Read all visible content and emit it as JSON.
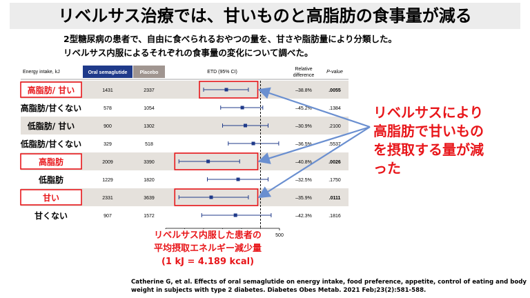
{
  "title": "リベルサス治療では、甘いものと高脂肪の食事量が減る",
  "subtitle_lines": [
    "2型糖尿病の患者で、自由に食べられるおやつの量を、甘さや脂肪量により分類した。",
    "リベルサス内服によるそれぞれの食事量の変化について調べた。"
  ],
  "table_headers": {
    "energy": "Energy intake, kJ",
    "oral": "Oral semaglutide",
    "placebo": "Placebo",
    "etd": "ETD (95% CI)",
    "relative": [
      "Relative",
      "difference"
    ],
    "pvalue": "P-value"
  },
  "colors": {
    "red": "#e8161a",
    "navy": "#1f3a8a",
    "oral_header": "#1f3a8a",
    "placebo_header": "#a09590",
    "shade": "#e5e1dc",
    "arrow": "#6a8fd0"
  },
  "chart_data": {
    "type": "forest",
    "x_ticks": [
      -2500,
      -2000,
      -1500,
      -1000,
      -500,
      0,
      500
    ],
    "xlim": [
      -2500,
      500
    ],
    "rows": [
      {
        "label": "高脂肪/ 甘い",
        "oral": "1431",
        "placebo": "2337",
        "etd": -900,
        "lo": -1500,
        "hi": -320,
        "rel": "–38.8%",
        "p": ".0055",
        "highlight": true,
        "shaded": true,
        "bold_p": true
      },
      {
        "label": "高脂肪/甘くない",
        "oral": "578",
        "placebo": "1054",
        "etd": -480,
        "lo": -1050,
        "hi": 60,
        "rel": "–45.2%",
        "p": ".1384",
        "highlight": false,
        "shaded": false,
        "bold_p": false
      },
      {
        "label": "低脂肪/ 甘い",
        "oral": "900",
        "placebo": "1302",
        "etd": -400,
        "lo": -1000,
        "hi": 200,
        "rel": "–30.9%",
        "p": ".2100",
        "highlight": false,
        "shaded": true,
        "bold_p": false
      },
      {
        "label": "低脂肪/甘くない",
        "oral": "329",
        "placebo": "518",
        "etd": -190,
        "lo": -850,
        "hi": 480,
        "rel": "–36.5%",
        "p": ".5537",
        "highlight": false,
        "shaded": false,
        "bold_p": false
      },
      {
        "label": "高脂肪",
        "oral": "2009",
        "placebo": "3390",
        "etd": -1380,
        "lo": -2150,
        "hi": -550,
        "rel": "–40.8%",
        "p": ".0026",
        "highlight": true,
        "shaded": true,
        "bold_p": true
      },
      {
        "label": "低脂肪",
        "oral": "1229",
        "placebo": "1820",
        "etd": -590,
        "lo": -1400,
        "hi": 200,
        "rel": "–32.5%",
        "p": ".1750",
        "highlight": false,
        "shaded": false,
        "bold_p": false
      },
      {
        "label": "甘い",
        "oral": "2331",
        "placebo": "3639",
        "etd": -1300,
        "lo": -2150,
        "hi": -320,
        "rel": "–35.9%",
        "p": ".0111",
        "highlight": true,
        "shaded": true,
        "bold_p": true
      },
      {
        "label": "甘くない",
        "oral": "907",
        "placebo": "1572",
        "etd": -660,
        "lo": -1550,
        "hi": 280,
        "rel": "–42.3%",
        "p": ".1816",
        "highlight": false,
        "shaded": false,
        "bold_p": false
      }
    ]
  },
  "callout_lines": [
    "リベルサスにより",
    "高脂肪で甘いもの",
    "を摂取する量が減",
    "った"
  ],
  "note_lines": [
    "リベルサス内服した患者の",
    "平均摂取エネルギー減少量",
    "(1 kJ = 4.189 kcal)"
  ],
  "citation": "Catherine G, et al.  Effects of oral semaglutide on energy intake, food preference, appetite, control of eating and body weight in subjects with type 2 diabetes. Diabetes Obes Metab. 2021 Feb;23(2):581-588."
}
